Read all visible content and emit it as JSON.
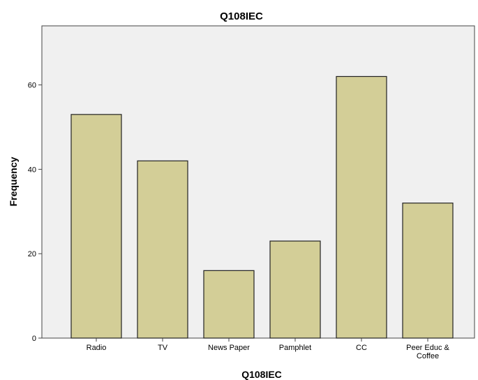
{
  "chart_data": {
    "type": "bar",
    "title": "Q108IEC",
    "xlabel": "Q108IEC",
    "ylabel": "Frequency",
    "categories": [
      "Radio",
      "TV",
      "News Paper",
      "Pamphlet",
      "CC",
      "Peer Educ & Coffee"
    ],
    "category_lines": [
      [
        "Radio"
      ],
      [
        "TV"
      ],
      [
        "News Paper"
      ],
      [
        "Pamphlet"
      ],
      [
        "CC"
      ],
      [
        "Peer Educ &",
        "Coffee"
      ]
    ],
    "values": [
      53,
      42,
      16,
      23,
      62,
      32
    ],
    "ylim": [
      0,
      74
    ],
    "yticks": [
      0,
      20,
      40,
      60
    ],
    "grid": false,
    "legend": "none",
    "colors": {
      "bar_fill": "#d3ce97",
      "bar_stroke": "#222222",
      "plot_background": "#f0f0f0",
      "axis": "#444444"
    }
  }
}
